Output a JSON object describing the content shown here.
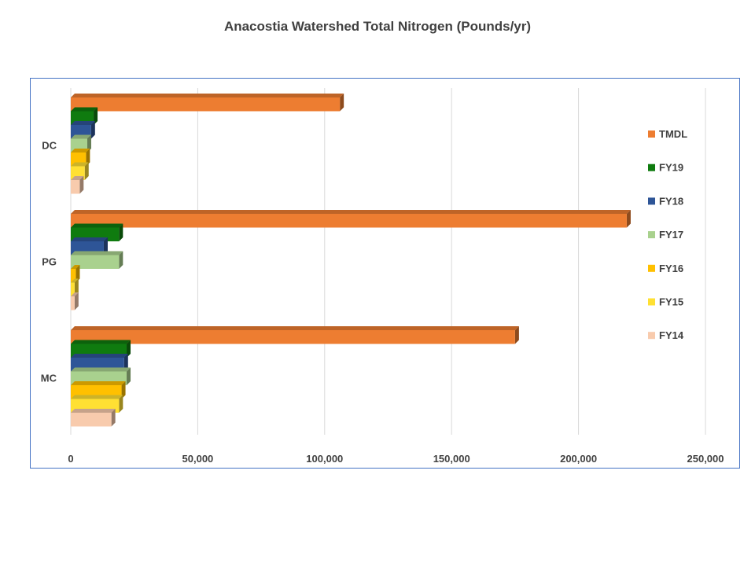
{
  "chart_data": {
    "type": "bar",
    "orientation": "horizontal",
    "title": "Anacostia Watershed Total Nitrogen (Pounds/yr)",
    "xlabel": "",
    "ylabel": "",
    "xlim": [
      0,
      250000
    ],
    "x_ticks": [
      0,
      50000,
      100000,
      150000,
      200000,
      250000
    ],
    "x_tick_labels": [
      "0",
      "50,000",
      "100,000",
      "150,000",
      "200,000",
      "250,000"
    ],
    "categories": [
      "DC",
      "PG",
      "MC"
    ],
    "grid": "vertical",
    "legend_position": "right",
    "series": [
      {
        "name": "TMDL",
        "color": "#ed7d31",
        "values": [
          106000,
          219000,
          175000
        ]
      },
      {
        "name": "FY19",
        "color": "#0f7b0f",
        "values": [
          9000,
          19000,
          22000
        ]
      },
      {
        "name": "FY18",
        "color": "#2e5597",
        "values": [
          8000,
          13000,
          21000
        ]
      },
      {
        "name": "FY17",
        "color": "#a9d18e",
        "values": [
          6500,
          19000,
          22000
        ]
      },
      {
        "name": "FY16",
        "color": "#ffc000",
        "values": [
          6000,
          2000,
          20000
        ]
      },
      {
        "name": "FY15",
        "color": "#ffe033",
        "values": [
          5500,
          1500,
          19000
        ]
      },
      {
        "name": "FY14",
        "color": "#f8cbad",
        "values": [
          3500,
          1500,
          16000
        ]
      }
    ]
  }
}
